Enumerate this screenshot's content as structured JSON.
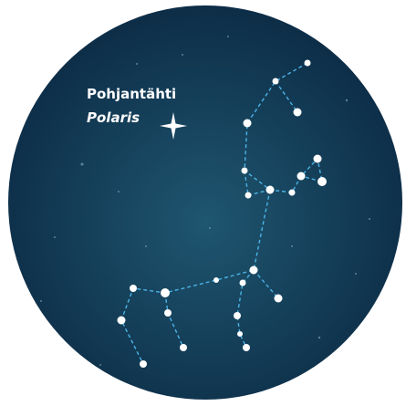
{
  "labels": {
    "name": "Pohjantähti",
    "latin": "Polaris"
  }
}
